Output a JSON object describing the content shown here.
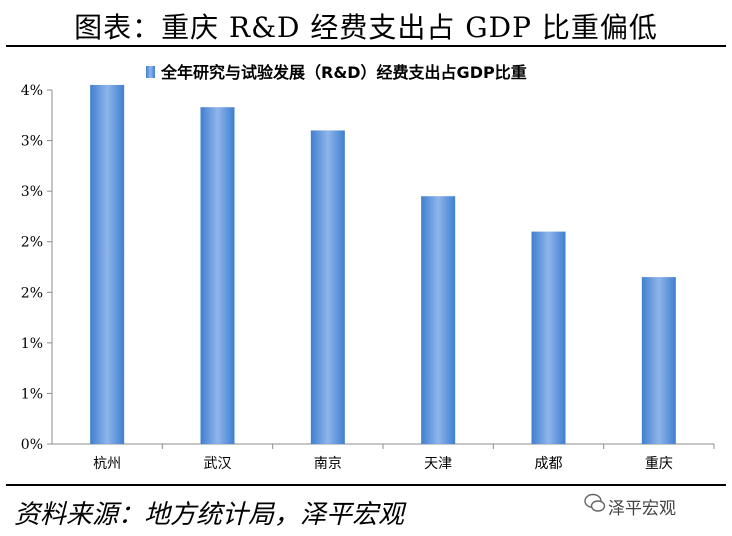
{
  "header": {
    "title": "图表：重庆 R&D 经费支出占 GDP 比重偏低"
  },
  "footer": {
    "source": "资料来源：地方统计局，泽平宏观",
    "watermark": "泽平宏观"
  },
  "colors": {
    "bar": "#3f7fd0",
    "bar_highlight": "#8fb5ea",
    "axis": "#8c8c8c"
  },
  "chart_data": {
    "type": "bar",
    "title": "",
    "xlabel": "",
    "ylabel": "",
    "categories": [
      "杭州",
      "武汉",
      "南京",
      "天津",
      "成都",
      "重庆"
    ],
    "series": [
      {
        "name": "全年研究与试验发展（R&D）经费支出占GDP比重",
        "values": [
          3.55,
          3.33,
          3.1,
          2.45,
          2.1,
          1.65
        ]
      }
    ],
    "ylim": [
      0,
      3.5
    ],
    "yticks": [
      0,
      0.5,
      1.0,
      1.5,
      2.0,
      2.5,
      3.0,
      3.5
    ],
    "ytick_labels": [
      "0%",
      "1%",
      "1%",
      "2%",
      "2%",
      "3%",
      "3%",
      "4%"
    ],
    "legend_position": "top",
    "grid": false
  }
}
